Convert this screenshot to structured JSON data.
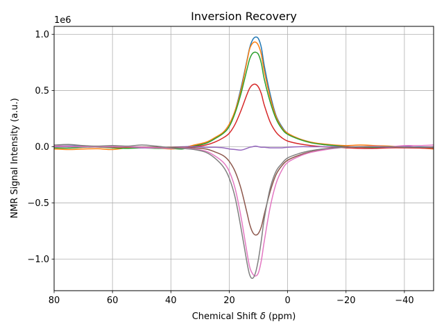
{
  "chart_data": {
    "type": "line",
    "title": "Inversion Recovery",
    "xlabel": "Chemical Shift",
    "xlabel_symbol": "δ",
    "xlabel_unit": "(ppm)",
    "ylabel": "NMR Signal Intensity (a.u.)",
    "y_offset_label": "1e6",
    "xlim": [
      80,
      -50
    ],
    "ylim": [
      -1.28,
      1.07
    ],
    "x_ticks": [
      80,
      60,
      40,
      20,
      0,
      -20,
      -40
    ],
    "x_tick_labels": [
      "80",
      "60",
      "40",
      "20",
      "0",
      "−20",
      "−40"
    ],
    "y_ticks": [
      -1.0,
      -0.5,
      0.0,
      0.5,
      1.0
    ],
    "y_tick_labels": [
      "−1.0",
      "−0.5",
      "0.0",
      "0.5",
      "1.0"
    ],
    "grid": true,
    "legend": "none",
    "x_sample": [
      80,
      75,
      70,
      65,
      60,
      55,
      50,
      45,
      40,
      36,
      32,
      28,
      25,
      22,
      20,
      18,
      16,
      14,
      13,
      12,
      11,
      10,
      9,
      8,
      6,
      4,
      2,
      0,
      -4,
      -8,
      -12,
      -16,
      -20,
      -25,
      -30,
      -35,
      -40,
      -45,
      -50
    ],
    "series": [
      {
        "color": "#1f77b4",
        "values": [
          0.005,
          0.008,
          0.005,
          0.003,
          0.0,
          -0.003,
          -0.005,
          -0.005,
          -0.006,
          -0.004,
          0.01,
          0.03,
          0.07,
          0.13,
          0.2,
          0.32,
          0.52,
          0.76,
          0.88,
          0.95,
          0.975,
          0.96,
          0.88,
          0.72,
          0.47,
          0.28,
          0.18,
          0.12,
          0.07,
          0.04,
          0.02,
          0.01,
          0.0,
          -0.005,
          -0.008,
          -0.004,
          -0.003,
          -0.002,
          -0.003
        ]
      },
      {
        "color": "#ff7f0e",
        "values": [
          -0.02,
          -0.025,
          -0.02,
          -0.018,
          -0.025,
          -0.01,
          -0.005,
          -0.01,
          -0.02,
          -0.01,
          0.015,
          0.04,
          0.08,
          0.13,
          0.2,
          0.32,
          0.5,
          0.75,
          0.87,
          0.92,
          0.93,
          0.9,
          0.82,
          0.67,
          0.44,
          0.27,
          0.17,
          0.12,
          0.07,
          0.04,
          0.025,
          0.015,
          0.01,
          0.015,
          0.01,
          0.005,
          -0.005,
          -0.01,
          -0.02
        ]
      },
      {
        "color": "#2ca02c",
        "values": [
          -0.01,
          -0.012,
          -0.005,
          -0.003,
          -0.01,
          -0.015,
          -0.01,
          -0.015,
          -0.015,
          -0.02,
          0.005,
          0.03,
          0.07,
          0.12,
          0.18,
          0.3,
          0.47,
          0.68,
          0.78,
          0.83,
          0.84,
          0.82,
          0.74,
          0.6,
          0.4,
          0.25,
          0.16,
          0.11,
          0.065,
          0.035,
          0.02,
          0.01,
          0.0,
          -0.005,
          -0.005,
          0.0,
          -0.005,
          -0.005,
          -0.01
        ]
      },
      {
        "color": "#d62728",
        "values": [
          0.003,
          0.002,
          0.0,
          -0.002,
          -0.003,
          -0.004,
          -0.004,
          -0.005,
          -0.005,
          -0.004,
          0.0,
          0.015,
          0.04,
          0.08,
          0.12,
          0.2,
          0.32,
          0.46,
          0.52,
          0.55,
          0.555,
          0.53,
          0.47,
          0.37,
          0.22,
          0.13,
          0.08,
          0.05,
          0.025,
          0.01,
          0.0,
          -0.005,
          -0.01,
          -0.015,
          -0.015,
          -0.01,
          -0.01,
          -0.012,
          -0.015
        ]
      },
      {
        "color": "#9467bd",
        "values": [
          0.0,
          0.0,
          0.0,
          0.0,
          0.0,
          0.0,
          -0.01,
          -0.01,
          -0.005,
          0.0,
          0.0,
          -0.005,
          -0.005,
          -0.01,
          -0.02,
          -0.025,
          -0.03,
          -0.015,
          -0.005,
          0.0,
          0.005,
          0.0,
          -0.005,
          -0.005,
          -0.01,
          -0.01,
          -0.01,
          -0.005,
          0.0,
          0.0,
          0.0,
          0.0,
          0.0,
          0.0,
          0.0,
          -0.005,
          0.005,
          -0.005,
          0.0
        ]
      },
      {
        "color": "#8c564b",
        "values": [
          0.005,
          0.005,
          0.0,
          0.003,
          0.005,
          0.0,
          -0.003,
          -0.005,
          -0.005,
          -0.005,
          -0.01,
          -0.02,
          -0.045,
          -0.08,
          -0.13,
          -0.22,
          -0.37,
          -0.58,
          -0.69,
          -0.76,
          -0.785,
          -0.77,
          -0.71,
          -0.6,
          -0.4,
          -0.25,
          -0.17,
          -0.12,
          -0.075,
          -0.045,
          -0.025,
          -0.01,
          0.0,
          -0.005,
          0.0,
          0.0,
          -0.005,
          -0.005,
          -0.005
        ]
      },
      {
        "color": "#e377c2",
        "values": [
          0.005,
          0.005,
          0.0,
          0.0,
          0.0,
          0.0,
          -0.005,
          -0.01,
          -0.015,
          -0.01,
          -0.02,
          -0.04,
          -0.08,
          -0.14,
          -0.22,
          -0.37,
          -0.62,
          -0.93,
          -1.07,
          -1.13,
          -1.15,
          -1.12,
          -1.01,
          -0.84,
          -0.54,
          -0.33,
          -0.21,
          -0.14,
          -0.085,
          -0.05,
          -0.03,
          -0.015,
          -0.005,
          0.0,
          0.005,
          0.0,
          0.01,
          0.01,
          0.015
        ]
      },
      {
        "color": "#7f7f7f",
        "values": [
          0.015,
          0.02,
          0.01,
          0.005,
          0.01,
          0.005,
          0.015,
          0.005,
          -0.01,
          -0.015,
          -0.025,
          -0.05,
          -0.1,
          -0.18,
          -0.28,
          -0.45,
          -0.72,
          -1.02,
          -1.14,
          -1.17,
          -1.12,
          -1.0,
          -0.83,
          -0.64,
          -0.37,
          -0.22,
          -0.15,
          -0.1,
          -0.06,
          -0.035,
          -0.02,
          -0.01,
          -0.005,
          0.0,
          0.0,
          0.0,
          -0.005,
          -0.005,
          -0.01
        ]
      }
    ]
  }
}
